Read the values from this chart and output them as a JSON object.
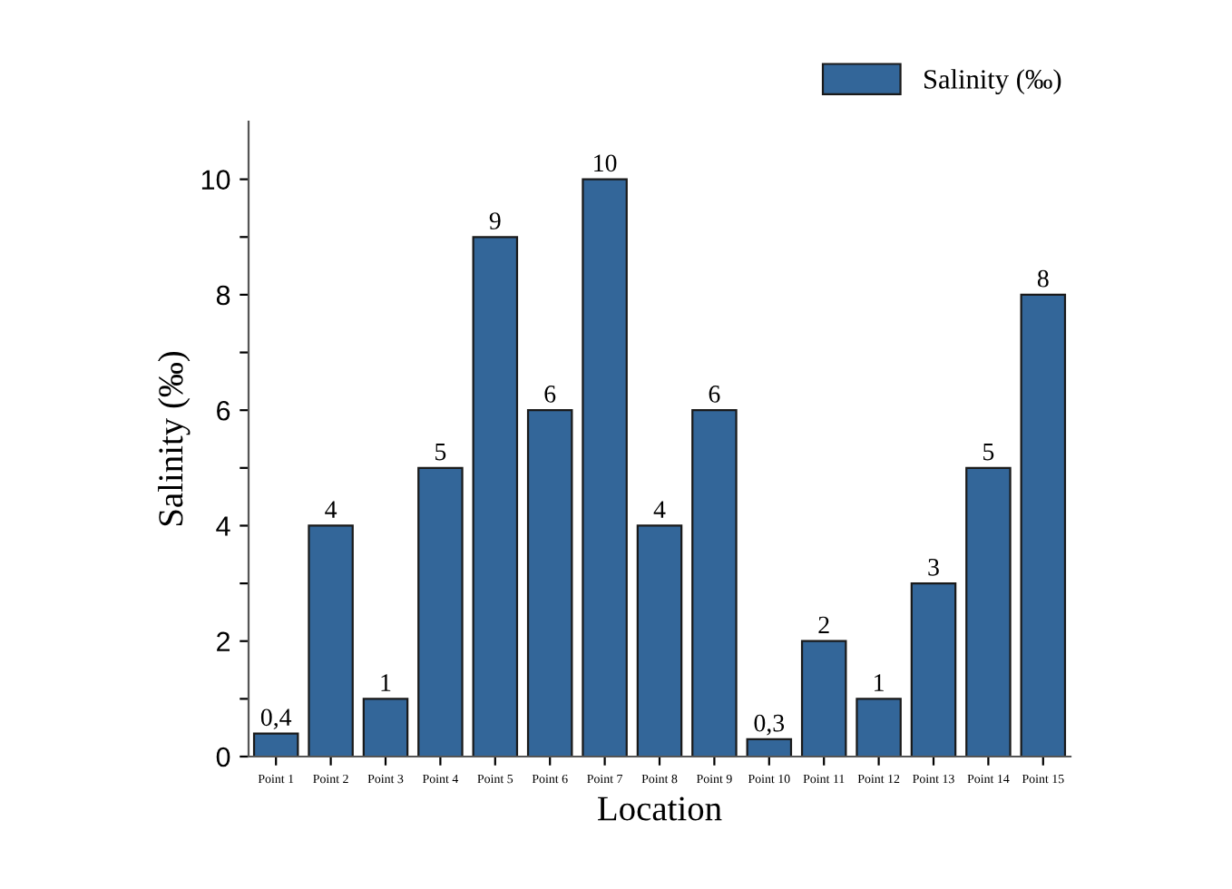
{
  "chart_data": {
    "type": "bar",
    "xlabel": "Location",
    "ylabel": "Salinity (‰)",
    "categories": [
      "Point 1",
      "Point 2",
      "Point 3",
      "Point 4",
      "Point 5",
      "Point 6",
      "Point 7",
      "Point 8",
      "Point 9",
      "Point 10",
      "Point 11",
      "Point 12",
      "Point 13",
      "Point 14",
      "Point 15"
    ],
    "series": [
      {
        "name": "Salinity (‰)",
        "color": "#336699",
        "values": [
          0.4,
          4,
          1,
          5,
          9,
          6,
          10,
          4,
          6,
          0.3,
          2,
          1,
          3,
          5,
          8
        ],
        "value_labels": [
          "0,4",
          "4",
          "1",
          "5",
          "9",
          "6",
          "10",
          "4",
          "6",
          "0,3",
          "2",
          "1",
          "3",
          "5",
          "8"
        ]
      }
    ],
    "ylim": [
      0,
      11
    ],
    "yticks": [
      0,
      {
        "value": 1,
        "label": null
      },
      2,
      {
        "value": 3,
        "label": null
      },
      4,
      {
        "value": 5,
        "label": null
      },
      6,
      {
        "value": 7,
        "label": null
      },
      8,
      {
        "value": 9,
        "label": null
      },
      10
    ],
    "grid": false,
    "legend": "top right"
  }
}
